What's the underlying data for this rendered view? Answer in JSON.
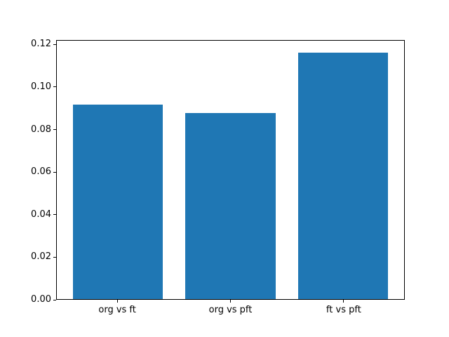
{
  "chart_data": {
    "type": "bar",
    "title": "",
    "xlabel": "",
    "ylabel": "",
    "categories": [
      "org vs ft",
      "org vs pft",
      "ft vs pft"
    ],
    "values": [
      0.0919,
      0.0878,
      0.1163
    ],
    "x_positions": [
      0,
      1,
      2
    ],
    "bar_width": 0.8,
    "bar_color": "#1f77b4",
    "xlim": [
      -0.54,
      2.54
    ],
    "ylim": [
      0,
      0.1221
    ],
    "yticks": [
      0,
      0.02,
      0.04,
      0.06,
      0.08,
      0.1,
      0.12
    ],
    "ytick_labels": [
      "0.00",
      "0.02",
      "0.04",
      "0.06",
      "0.08",
      "0.10",
      "0.12"
    ],
    "grid": false,
    "legend": false,
    "spine_color": "#000000",
    "background": "#ffffff"
  }
}
